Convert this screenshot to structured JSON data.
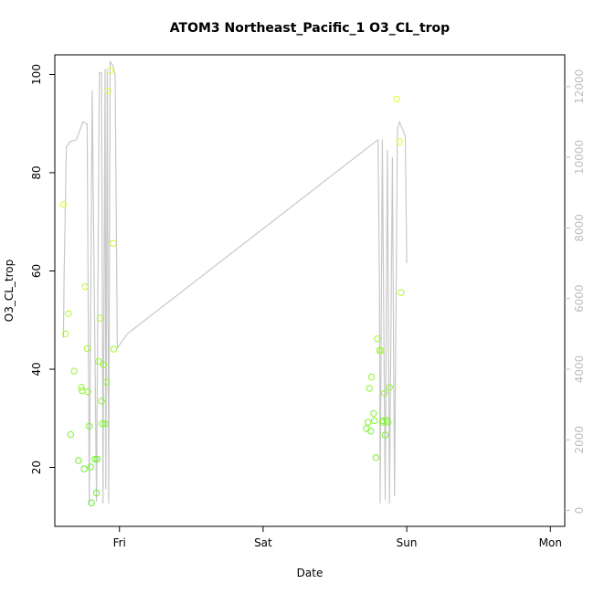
{
  "chart_data": {
    "type": "line+scatter",
    "title": "ATOM3 Northeast_Pacific_1 O3_CL_trop",
    "xlabel": "Date",
    "ylabel": "O3_CL_trop",
    "x_tick_labels": [
      "Fri",
      "Sat",
      "Sun",
      "Mon"
    ],
    "x_ticks_days": [
      1,
      2,
      3,
      4
    ],
    "xlim_days": [
      0.55,
      4.1
    ],
    "ylim": [
      8,
      104
    ],
    "y_ticks": [
      20,
      40,
      60,
      80,
      100
    ],
    "y_right_ticks": [
      0,
      2000,
      4000,
      6000,
      8000,
      10000,
      12000
    ],
    "y_right_lim": [
      -450,
      12900
    ],
    "line_color": "#c8c8c8",
    "point_color_low": "#66ee33",
    "point_color_high": "#ddff33",
    "altitude_series": {
      "name": "",
      "points": [
        [
          0.61,
          4900
        ],
        [
          0.615,
          6700
        ],
        [
          0.63,
          10300
        ],
        [
          0.66,
          10450
        ],
        [
          0.7,
          10500
        ],
        [
          0.745,
          11000
        ],
        [
          0.775,
          10950
        ],
        [
          0.79,
          150
        ],
        [
          0.81,
          11900
        ],
        [
          0.84,
          250
        ],
        [
          0.86,
          12400
        ],
        [
          0.875,
          12400
        ],
        [
          0.885,
          200
        ],
        [
          0.9,
          12500
        ],
        [
          0.905,
          600
        ],
        [
          0.915,
          12500
        ],
        [
          0.925,
          200
        ],
        [
          0.935,
          12700
        ],
        [
          0.955,
          12600
        ],
        [
          0.97,
          12300
        ],
        [
          0.985,
          4600
        ],
        [
          1.055,
          5000
        ],
        [
          2.8,
          10500
        ],
        [
          2.81,
          6500
        ],
        [
          2.815,
          200
        ],
        [
          2.83,
          10500
        ],
        [
          2.85,
          300
        ],
        [
          2.865,
          10200
        ],
        [
          2.88,
          200
        ],
        [
          2.9,
          10000
        ],
        [
          2.915,
          400
        ],
        [
          2.935,
          10800
        ],
        [
          2.95,
          11000
        ],
        [
          2.97,
          10800
        ],
        [
          2.99,
          10600
        ],
        [
          3.0,
          7000
        ]
      ]
    },
    "o3_series": {
      "name": "",
      "points": [
        [
          0.61,
          73.5
        ],
        [
          0.625,
          47.2
        ],
        [
          0.645,
          51.3
        ],
        [
          0.66,
          26.7
        ],
        [
          0.685,
          39.6
        ],
        [
          0.715,
          21.4
        ],
        [
          0.735,
          36.3
        ],
        [
          0.74,
          35.6
        ],
        [
          0.755,
          19.7
        ],
        [
          0.76,
          56.8
        ],
        [
          0.775,
          44.2
        ],
        [
          0.78,
          35.4
        ],
        [
          0.79,
          28.4
        ],
        [
          0.8,
          20.1
        ],
        [
          0.805,
          12.8
        ],
        [
          0.83,
          21.7
        ],
        [
          0.84,
          14.8
        ],
        [
          0.845,
          21.7
        ],
        [
          0.855,
          41.6
        ],
        [
          0.865,
          50.4
        ],
        [
          0.875,
          33.5
        ],
        [
          0.88,
          28.9
        ],
        [
          0.89,
          40.9
        ],
        [
          0.9,
          28.9
        ],
        [
          0.91,
          37.4
        ],
        [
          0.92,
          96.6
        ],
        [
          0.935,
          100.8
        ],
        [
          0.955,
          65.6
        ],
        [
          0.96,
          44.1
        ],
        [
          2.72,
          27.9
        ],
        [
          2.73,
          29.2
        ],
        [
          2.74,
          36.1
        ],
        [
          2.75,
          27.4
        ],
        [
          2.755,
          38.4
        ],
        [
          2.77,
          31.0
        ],
        [
          2.775,
          29.5
        ],
        [
          2.785,
          22.0
        ],
        [
          2.795,
          46.2
        ],
        [
          2.81,
          43.8
        ],
        [
          2.82,
          43.8
        ],
        [
          2.83,
          29.2
        ],
        [
          2.835,
          29.5
        ],
        [
          2.845,
          35.1
        ],
        [
          2.85,
          26.6
        ],
        [
          2.86,
          29.6
        ],
        [
          2.87,
          29.2
        ],
        [
          2.88,
          36.3
        ],
        [
          2.93,
          95.0
        ],
        [
          2.95,
          86.3
        ],
        [
          2.96,
          55.6
        ]
      ]
    }
  }
}
